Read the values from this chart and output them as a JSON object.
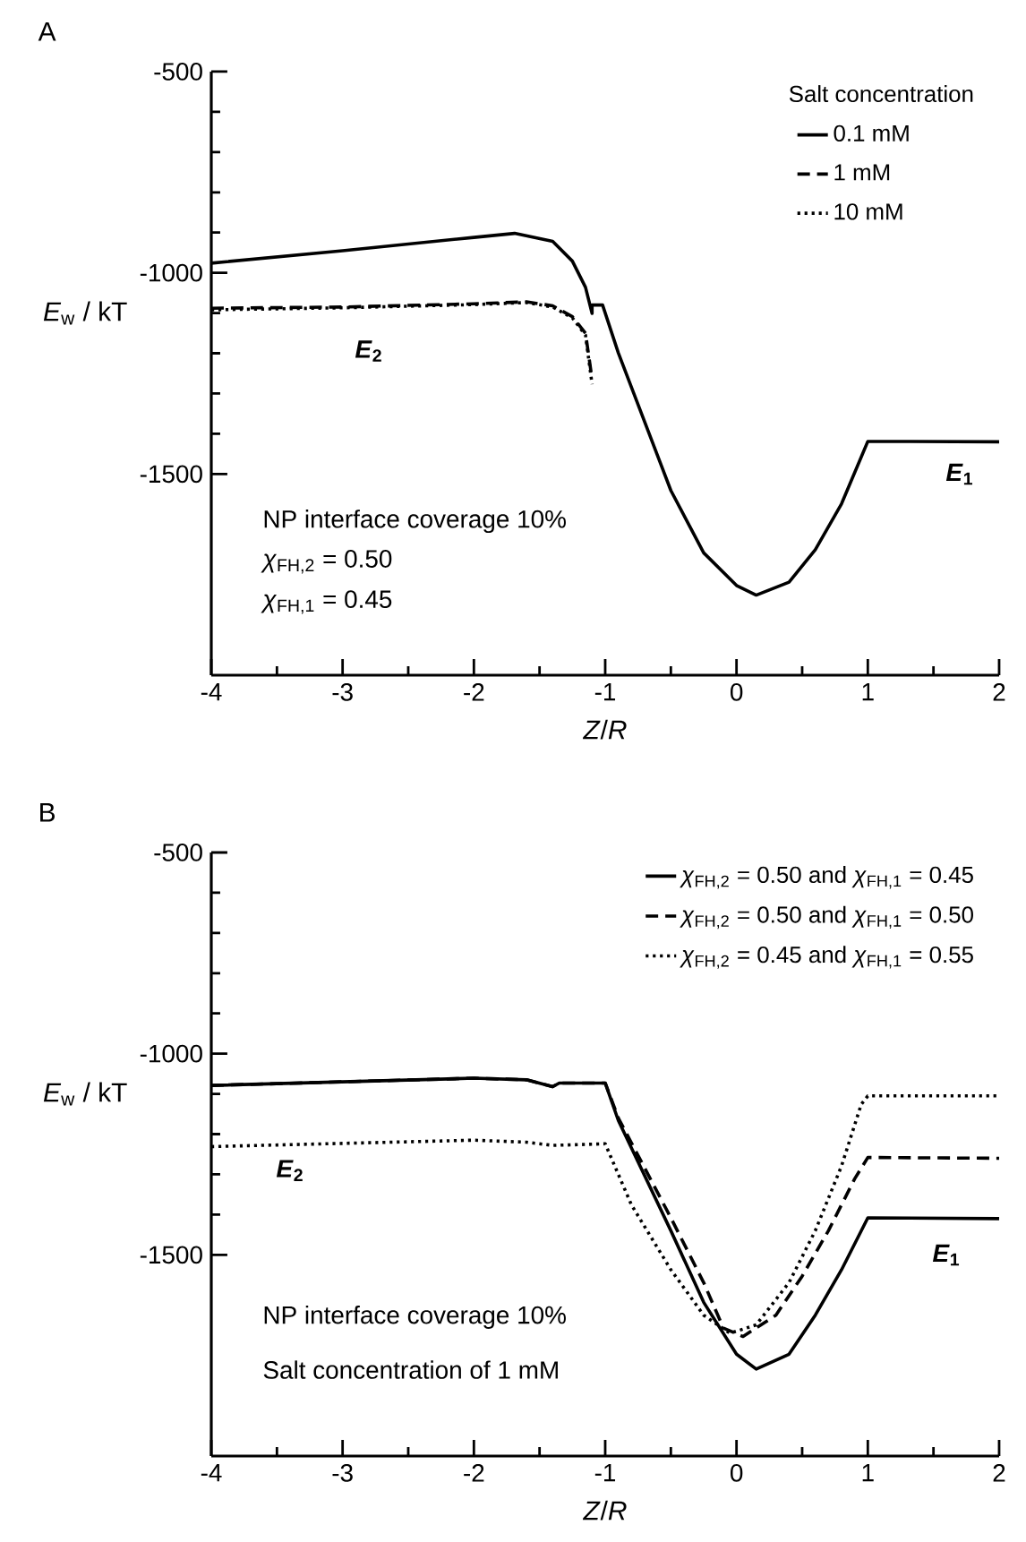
{
  "chart_data": [
    {
      "type": "line",
      "title": "A",
      "xlabel": "*Z*/*R*",
      "ylabel": "*E*$_{w}$ / kT",
      "legend_title": "Salt concentration",
      "legend": "top right",
      "xlim": [
        -4,
        2
      ],
      "ylim": [
        -2000,
        -500
      ],
      "xticks": [
        -4,
        -3,
        -2,
        -1,
        0,
        1,
        2
      ],
      "yticks": [
        -500,
        -1000,
        -1500
      ],
      "series": [
        {
          "name": "0.1 mM",
          "color": "#000000",
          "line_style": "solid",
          "x": [
            -4,
            -3,
            -2,
            -1.69,
            -1.4,
            -1.25,
            -1.15,
            -1.1,
            -1.1,
            -1.02,
            -0.9,
            -0.5,
            -0.25,
            0,
            0.15,
            0.4,
            0.6,
            0.8,
            1,
            2
          ],
          "values": [
            -976,
            -945,
            -912,
            -902,
            -922,
            -971,
            -1036,
            -1101,
            -1080,
            -1080,
            -1199,
            -1541,
            -1696,
            -1777,
            -1801,
            -1769,
            -1688,
            -1574,
            -1419,
            -1420
          ]
        },
        {
          "name": "1 mM",
          "color": "#000000",
          "line_style": "dashed",
          "x": [
            -4,
            -3,
            -2,
            -1.6,
            -1.4,
            -1.25,
            -1.15,
            -1.1
          ],
          "values": [
            -1088,
            -1085,
            -1077,
            -1072,
            -1082,
            -1109,
            -1150,
            -1264
          ]
        },
        {
          "name": "10 mM",
          "color": "#000000",
          "line_style": "dotted",
          "x": [
            -4,
            -3,
            -2,
            -1.6,
            -1.4,
            -1.25,
            -1.15,
            -1.1
          ],
          "values": [
            -1092,
            -1087,
            -1079,
            -1074,
            -1085,
            -1112,
            -1155,
            -1277
          ]
        }
      ],
      "annotations": [
        "*E*$_{2}$",
        "*E*$_{1}$",
        "NP interface coverage 10%",
        "*χ*$_{FH,2}$ = 0.50",
        "*χ*$_{FH,1}$ = 0.45"
      ]
    },
    {
      "type": "line",
      "title": "B",
      "xlabel": "*Z*/*R*",
      "ylabel": "*E*$_{w}$ / kT",
      "legend": "top right",
      "xlim": [
        -4,
        2
      ],
      "ylim": [
        -2000,
        -500
      ],
      "xticks": [
        -4,
        -3,
        -2,
        -1,
        0,
        1,
        2
      ],
      "yticks": [
        -500,
        -1000,
        -1500
      ],
      "series": [
        {
          "name": "*χ*$_{FH,2}$ = 0.50 and *χ*$_{FH,1}$ = 0.45",
          "color": "#000000",
          "line_style": "solid",
          "x": [
            -4,
            -2,
            -1.6,
            -1.4,
            -1.35,
            -1,
            -0.9,
            -0.5,
            -0.25,
            0,
            0.15,
            0.4,
            0.6,
            0.8,
            1,
            2
          ],
          "values": [
            -1079,
            -1061,
            -1065,
            -1082,
            -1073,
            -1073,
            -1166,
            -1440,
            -1618,
            -1747,
            -1784,
            -1747,
            -1650,
            -1537,
            -1408,
            -1410
          ]
        },
        {
          "name": "*χ*$_{FH,2}$ = 0.50 and *χ*$_{FH,1}$ = 0.50",
          "color": "#000000",
          "line_style": "dashed",
          "x": [
            -4,
            -2,
            -1.6,
            -1.4,
            -1.35,
            -1,
            -0.9,
            -0.5,
            -0.25,
            -0.1,
            0.05,
            0.3,
            0.5,
            0.7,
            0.9,
            1,
            2
          ],
          "values": [
            -1079,
            -1061,
            -1065,
            -1082,
            -1073,
            -1073,
            -1160,
            -1408,
            -1569,
            -1682,
            -1703,
            -1650,
            -1553,
            -1440,
            -1311,
            -1258,
            -1260
          ]
        },
        {
          "name": "*χ*$_{FH,2}$ = 0.45 and *χ*$_{FH,1}$ = 0.55",
          "color": "#000000",
          "line_style": "dotted",
          "x": [
            -4,
            -2,
            -1.6,
            -1.4,
            -1,
            -0.8,
            -0.5,
            -0.25,
            -0.05,
            0.15,
            0.4,
            0.6,
            0.8,
            0.95,
            1,
            2
          ],
          "values": [
            -1231,
            -1215,
            -1220,
            -1228,
            -1224,
            -1376,
            -1537,
            -1650,
            -1695,
            -1674,
            -1569,
            -1440,
            -1279,
            -1126,
            -1105,
            -1105
          ]
        }
      ],
      "annotations": [
        "*E*$_{2}$",
        "*E*$_{1}$",
        "NP interface coverage 10%",
        "Salt concentration of 1 mM"
      ]
    }
  ]
}
